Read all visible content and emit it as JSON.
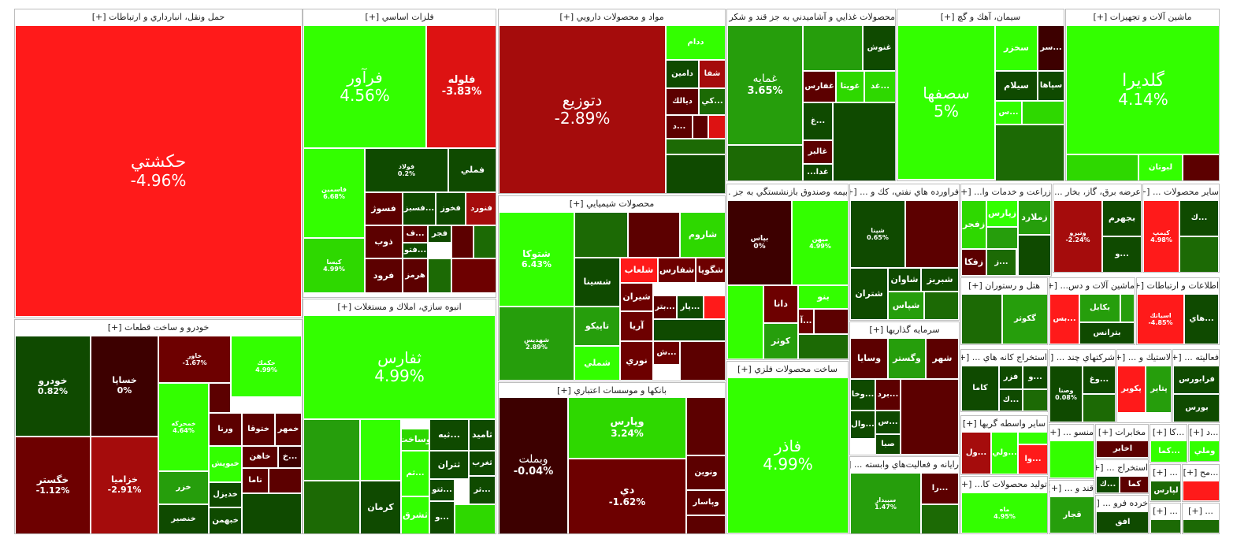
{
  "colors": {
    "up_max": "#33ff00",
    "up_high": "#2ed800",
    "up_mid": "#269e0c",
    "up_low": "#1c6a05",
    "up_min": "#0f4a00",
    "down_min": "#5c0000",
    "down_low": "#6d0000",
    "down_mid": "#a50c0c",
    "down_high": "#dd1212",
    "down_max": "#ff1a1a",
    "neutral": "#3d0000"
  },
  "sectors": [
    {
      "id": "transport",
      "title": "حمل ونقل، انبارداري و ارتباطات [+]",
      "cells": [
        {
          "name": "حكشتي",
          "pct": "-4.96%"
        }
      ]
    },
    {
      "id": "metals",
      "title": "فلزات اساسي [+]",
      "cells": [
        {
          "name": "فرآور",
          "pct": "4.56%"
        },
        {
          "name": "فلوله",
          "pct": "-3.83%"
        },
        {
          "name": "فاسمين",
          "pct": "6.68%"
        },
        {
          "name": "فولاد",
          "pct": "0.2%"
        },
        {
          "name": "فملي",
          "pct": ""
        },
        {
          "name": "فسوژ",
          "pct": ""
        },
        {
          "name": "...فسبز",
          "pct": ""
        },
        {
          "name": "فخوز",
          "pct": ""
        },
        {
          "name": "فنورد",
          "pct": ""
        },
        {
          "name": "ذوب",
          "pct": ""
        },
        {
          "name": "فرود",
          "pct": ""
        },
        {
          "name": "هرمز",
          "pct": ""
        },
        {
          "name": "فجر",
          "pct": ""
        },
        {
          "name": "...ف",
          "pct": ""
        },
        {
          "name": "...فتو",
          "pct": ""
        },
        {
          "name": "كيسا",
          "pct": "4.99%"
        }
      ]
    },
    {
      "id": "pharma",
      "title": "مواد و محصولات دارويي [+]",
      "cells": [
        {
          "name": "دتوزيع",
          "pct": "-2.89%"
        },
        {
          "name": "ددام",
          "pct": ""
        },
        {
          "name": "دامين",
          "pct": ""
        },
        {
          "name": "شفا",
          "pct": ""
        },
        {
          "name": "ديالك",
          "pct": ""
        },
        {
          "name": "...كي",
          "pct": ""
        },
        {
          "name": "...د",
          "pct": ""
        }
      ]
    },
    {
      "id": "food",
      "title": "محصولات غذايي و آشاميدني به جز قند و شكر [+]",
      "cells": [
        {
          "name": "غمايه",
          "pct": "3.65%"
        },
        {
          "name": "غنوش",
          "pct": ""
        },
        {
          "name": "غفارس",
          "pct": ""
        },
        {
          "name": "غويتا",
          "pct": ""
        },
        {
          "name": "...غد",
          "pct": ""
        },
        {
          "name": "غالبر",
          "pct": ""
        },
        {
          "name": "غدا...",
          "pct": ""
        },
        {
          "name": "...غ",
          "pct": ""
        }
      ]
    },
    {
      "id": "cement",
      "title": "سيمان، آهك و گچ [+]",
      "cells": [
        {
          "name": "سصفها",
          "pct": "5%"
        },
        {
          "name": "سخزر",
          "pct": ""
        },
        {
          "name": "...سر",
          "pct": ""
        },
        {
          "name": "سيلام",
          "pct": ""
        },
        {
          "name": "سپاها",
          "pct": ""
        },
        {
          "name": "...س",
          "pct": ""
        }
      ]
    },
    {
      "id": "machinery",
      "title": "ماشين آلات و تجهيزات [+]",
      "cells": [
        {
          "name": "گلديرا",
          "pct": "4.14%"
        },
        {
          "name": "لبوتان",
          "pct": ""
        }
      ]
    },
    {
      "id": "chemicals",
      "title": "محصولات شيميايي [+]",
      "cells": [
        {
          "name": "شتوكا",
          "pct": "6.43%"
        },
        {
          "name": "شاروم",
          "pct": ""
        },
        {
          "name": "شسينا",
          "pct": ""
        },
        {
          "name": "شلعاب",
          "pct": ""
        },
        {
          "name": "شفارس",
          "pct": ""
        },
        {
          "name": "شگويا",
          "pct": ""
        },
        {
          "name": "تاپيكو",
          "pct": ""
        },
        {
          "name": "شيران",
          "pct": ""
        },
        {
          "name": "...بتر",
          "pct": ""
        },
        {
          "name": "...پار",
          "pct": ""
        },
        {
          "name": "آريا",
          "pct": ""
        },
        {
          "name": "شملي",
          "pct": ""
        },
        {
          "name": "نوري",
          "pct": ""
        },
        {
          "name": "...ش",
          "pct": ""
        },
        {
          "name": "شهديس",
          "pct": "2.89%"
        }
      ]
    },
    {
      "id": "auto",
      "title": "خودرو و ساخت قطعات [+]",
      "cells": [
        {
          "name": "خودرو",
          "pct": "0.82%"
        },
        {
          "name": "خساپا",
          "pct": "0%"
        },
        {
          "name": "خاور",
          "pct": "-1.67%"
        },
        {
          "name": "خگستر",
          "pct": "-1.12%"
        },
        {
          "name": "خزاميا",
          "pct": "-2.91%"
        },
        {
          "name": "حكمك",
          "pct": "4.99%"
        },
        {
          "name": "خمهر",
          "pct": ""
        },
        {
          "name": "ختوقا",
          "pct": ""
        },
        {
          "name": "ورنا",
          "pct": ""
        },
        {
          "name": "خاهن",
          "pct": ""
        },
        {
          "name": "...خ",
          "pct": ""
        },
        {
          "name": "خبويش",
          "pct": ""
        },
        {
          "name": "ناما",
          "pct": ""
        },
        {
          "name": "خزر",
          "pct": ""
        },
        {
          "name": "خديزل",
          "pct": ""
        },
        {
          "name": "خنصير",
          "pct": ""
        },
        {
          "name": "خبهمن",
          "pct": ""
        },
        {
          "name": "خمحركه",
          "pct": "4.64%"
        }
      ]
    },
    {
      "id": "realestate",
      "title": "انبوه سازي، املاك و مستغلات [+]",
      "cells": [
        {
          "name": "ثفارس",
          "pct": "4.99%"
        },
        {
          "name": "ثامید",
          "pct": ""
        },
        {
          "name": "...ثبه",
          "pct": ""
        },
        {
          "name": "وساخت",
          "pct": ""
        },
        {
          "name": "ثغرب",
          "pct": ""
        },
        {
          "name": "ثتران",
          "pct": ""
        },
        {
          "name": "...ثتو",
          "pct": ""
        },
        {
          "name": "كرمان",
          "pct": ""
        },
        {
          "name": "ثشرق",
          "pct": ""
        },
        {
          "name": "...ثم",
          "pct": ""
        },
        {
          "name": "...ثر",
          "pct": ""
        },
        {
          "name": "...و",
          "pct": ""
        }
      ]
    },
    {
      "id": "banks",
      "title": "بانكها و موسسات اعتباري [+]",
      "cells": [
        {
          "name": "وبملت",
          "pct": "-0.04%"
        },
        {
          "name": "وپارس",
          "pct": "3.24%"
        },
        {
          "name": "دي",
          "pct": "-1.62%"
        },
        {
          "name": "ونوين",
          "pct": ""
        },
        {
          "name": "وپاسار",
          "pct": ""
        }
      ]
    },
    {
      "id": "insurance",
      "title": "بيمه وصندوق بازنشستگي به جز ...",
      "cells": [
        {
          "name": "بپاس",
          "pct": "0%"
        },
        {
          "name": "ميهن",
          "pct": "4.99%"
        },
        {
          "name": "دانا",
          "pct": ""
        },
        {
          "name": "بنو",
          "pct": ""
        },
        {
          "name": "كوثر",
          "pct": ""
        },
        {
          "name": "...آ",
          "pct": ""
        }
      ]
    },
    {
      "id": "oil",
      "title": "فراورده هاي نفتي، كك و ... [+]",
      "cells": [
        {
          "name": "شپنا",
          "pct": "0.65%"
        },
        {
          "name": "شبريز",
          "pct": ""
        },
        {
          "name": "شاوان",
          "pct": ""
        },
        {
          "name": "شتران",
          "pct": ""
        },
        {
          "name": "شپاس",
          "pct": ""
        }
      ]
    },
    {
      "id": "farming",
      "title": "زراعت و خدمات وا... [+]",
      "cells": [
        {
          "name": "زملارد",
          "pct": ""
        },
        {
          "name": "زپارس",
          "pct": ""
        },
        {
          "name": "زفجر",
          "pct": ""
        },
        {
          "name": "زفكا",
          "pct": ""
        },
        {
          "name": "...ز",
          "pct": ""
        }
      ]
    },
    {
      "id": "power",
      "title": "عرضه برق، گاز، بخار ... [+]",
      "cells": [
        {
          "name": "بجهرم",
          "pct": ""
        },
        {
          "name": "وتيرو",
          "pct": "-2.24%"
        },
        {
          "name": "...و",
          "pct": ""
        }
      ]
    },
    {
      "id": "other",
      "title": "ساير محصولات ... [+]",
      "cells": [
        {
          "name": "كيمپ",
          "pct": "4.98%"
        },
        {
          "name": "...ك",
          "pct": ""
        }
      ]
    },
    {
      "id": "metalprod",
      "title": "ساخت محصولات فلزي [+]",
      "cells": [
        {
          "name": "فاذر",
          "pct": "4.99%"
        }
      ]
    },
    {
      "id": "invest",
      "title": "سرمايه گذاريها [+]",
      "cells": [
        {
          "name": "وسايا",
          "pct": ""
        },
        {
          "name": "وگستر",
          "pct": ""
        },
        {
          "name": "شهر",
          "pct": ""
        },
        {
          "name": "...وخا",
          "pct": ""
        },
        {
          "name": "...برد",
          "pct": ""
        },
        {
          "name": "...وال",
          "pct": ""
        },
        {
          "name": "...س",
          "pct": ""
        },
        {
          "name": "صبا",
          "pct": ""
        }
      ]
    },
    {
      "id": "it",
      "title": "رايانه و فعاليت‌هاي وابسته ... [+]",
      "cells": [
        {
          "name": "سپيدار",
          "pct": "1.47%"
        },
        {
          "name": "...را",
          "pct": ""
        }
      ]
    },
    {
      "id": "hotel",
      "title": "هتل و رستوران [+]",
      "cells": [
        {
          "name": "گكوثر",
          "pct": ""
        }
      ]
    },
    {
      "id": "machdev",
      "title": "ماشين آلات و دس... [+]",
      "cells": [
        {
          "name": "بكابل",
          "pct": ""
        },
        {
          "name": "بترانس",
          "pct": ""
        },
        {
          "name": "...بس",
          "pct": ""
        }
      ]
    },
    {
      "id": "telecom",
      "title": "اطلاعات و ارتباطات [+]",
      "cells": [
        {
          "name": "اسياتك",
          "pct": "-4.85%"
        },
        {
          "name": "...هاي",
          "pct": ""
        }
      ]
    },
    {
      "id": "mining",
      "title": "استخراج كانه هاي ... [+]",
      "cells": [
        {
          "name": "كاما",
          "pct": ""
        },
        {
          "name": "فزر",
          "pct": ""
        },
        {
          "name": "...و",
          "pct": ""
        },
        {
          "name": "...ك",
          "pct": ""
        }
      ]
    },
    {
      "id": "multi",
      "title": "شركتهاي چند ... [+]",
      "cells": [
        {
          "name": "...وغ",
          "pct": ""
        },
        {
          "name": "وصنا",
          "pct": "0.08%"
        }
      ]
    },
    {
      "id": "plastic",
      "title": "لاستيك و ... [+]",
      "cells": [
        {
          "name": "پكوير",
          "pct": ""
        },
        {
          "name": "پتاير",
          "pct": ""
        }
      ]
    },
    {
      "id": "activity",
      "title": "فعاليته ... [+]",
      "cells": [
        {
          "name": "فرابورس",
          "pct": ""
        },
        {
          "name": "بورس",
          "pct": ""
        }
      ]
    },
    {
      "id": "broker",
      "title": "ساير واسطه گريها [+]",
      "cells": [
        {
          "name": "...ول",
          "pct": ""
        },
        {
          "name": "...ولي",
          "pct": ""
        },
        {
          "name": "...وا",
          "pct": ""
        }
      ]
    },
    {
      "id": "produce",
      "title": "توليد محصولات كا... [+]",
      "cells": [
        {
          "name": "ماه",
          "pct": "4.95%"
        }
      ]
    },
    {
      "id": "textile",
      "title": "منسو ... [+]",
      "cells": []
    },
    {
      "id": "comms",
      "title": "مخابرات [+]",
      "cells": [
        {
          "name": "اخابر",
          "pct": ""
        }
      ]
    },
    {
      "id": "c1",
      "title": "...كا [+]",
      "cells": [
        {
          "name": "...كما",
          "pct": ""
        }
      ]
    },
    {
      "id": "c2",
      "title": "...د [+]",
      "cells": [
        {
          "name": "وملي",
          "pct": ""
        }
      ]
    },
    {
      "id": "c3",
      "title": "استخراج ... [+]",
      "cells": [
        {
          "name": "...ك",
          "pct": ""
        },
        {
          "name": "كما",
          "pct": ""
        }
      ]
    },
    {
      "id": "c4",
      "title": "قند و ... [+]",
      "cells": [
        {
          "name": "قجار",
          "pct": ""
        }
      ]
    },
    {
      "id": "c5",
      "title": "... [+]",
      "cells": [
        {
          "name": "لپارس",
          "pct": ""
        }
      ]
    },
    {
      "id": "c6",
      "title": "...مح [+]",
      "cells": []
    },
    {
      "id": "c7",
      "title": "خرده فرو ... [+]",
      "cells": [
        {
          "name": "افق",
          "pct": ""
        }
      ]
    },
    {
      "id": "c8",
      "title": "... [+]",
      "cells": []
    },
    {
      "id": "c9",
      "title": "... [+]",
      "cells": []
    }
  ]
}
